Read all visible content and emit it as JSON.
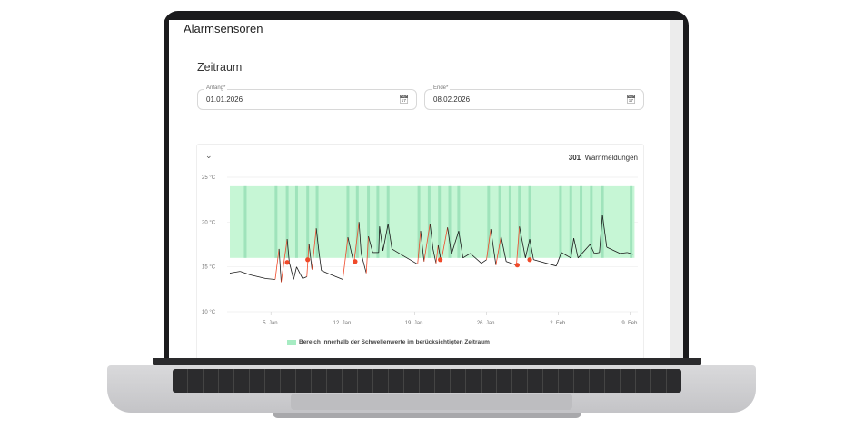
{
  "app": {
    "title": "Alarmsensoren"
  },
  "section": {
    "title": "Zeitraum"
  },
  "start_field": {
    "label": "Anfang*",
    "value": "01.01.2026",
    "icon": "calendar-icon"
  },
  "end_field": {
    "label": "Ende*",
    "value": "08.02.2026",
    "icon": "calendar-icon"
  },
  "panel": {
    "collapse_icon": "chevron-down-icon",
    "warning_count": "301",
    "warning_label": "Warnmeldungen"
  },
  "colors": {
    "band": "#c6f6d5",
    "band_stripe": "#9fe3bb",
    "line": "#1a1a1a",
    "alarm": "#f04a2a",
    "legend": "#a7ecc3"
  },
  "chart_data": {
    "type": "line",
    "y_unit": "°C",
    "ylim": [
      10,
      25
    ],
    "y_ticks": [
      "10 °C",
      "15 °C",
      "20 °C",
      "25 °C"
    ],
    "x_ticks": [
      "5. Jan.",
      "12. Jan.",
      "19. Jan.",
      "26. Jan.",
      "2. Feb.",
      "9. Feb."
    ],
    "x_tick_dates": [
      "2026-01-05",
      "2026-01-12",
      "2026-01-19",
      "2026-01-26",
      "2026-02-02",
      "2026-02-09"
    ],
    "x_range": [
      "2026-01-01",
      "2026-02-09 10:00"
    ],
    "threshold_band": {
      "min": 16,
      "max": 24,
      "label": "Bereich innerhalb der Schwellenwerte im berücksichtigten Zeitraum"
    },
    "warning_periods": [
      "2026-01-02 12:00",
      "2026-01-05 12:00",
      "2026-01-06 14:00",
      "2026-01-07 12:00",
      "2026-01-08 14:00",
      "2026-01-09 12:00",
      "2026-01-12 12:00",
      "2026-01-13 10:00",
      "2026-01-14 12:00",
      "2026-01-15 10:00",
      "2026-01-16 10:00",
      "2026-01-19 10:00",
      "2026-01-20 10:00",
      "2026-01-21 10:00",
      "2026-01-22 10:00",
      "2026-01-23 07:00",
      "2026-01-26 05:00",
      "2026-01-27 07:00",
      "2026-01-28 07:00",
      "2026-01-29 05:00",
      "2026-01-30 05:00",
      "2026-02-02 05:00",
      "2026-02-03 05:00",
      "2026-02-04 05:00",
      "2026-02-05 05:00",
      "2026-02-06 07:00",
      "2026-02-09 02:00"
    ],
    "series": [
      {
        "points": [
          [
            "2026-01-01 00:00",
            14.3
          ],
          [
            "2026-01-02 00:00",
            14.5
          ],
          [
            "2026-01-03 00:00",
            14.1
          ],
          [
            "2026-01-04 12:00",
            13.7
          ],
          [
            "2026-01-05 10:00",
            13.6
          ],
          [
            "2026-01-05 19:00",
            17.0
          ],
          [
            "2026-01-06 00:00",
            13.3
          ],
          [
            "2026-01-06 14:00",
            18.1
          ],
          [
            "2026-01-06 19:00",
            15.5
          ],
          [
            "2026-01-07 05:00",
            13.6
          ],
          [
            "2026-01-07 12:00",
            15.0
          ],
          [
            "2026-01-08 02:00",
            13.7
          ],
          [
            "2026-01-08 12:00",
            13.9
          ],
          [
            "2026-01-08 17:00",
            17.6
          ],
          [
            "2026-01-09 00:00",
            14.7
          ],
          [
            "2026-01-09 10:00",
            19.3
          ],
          [
            "2026-01-09 17:00",
            16.4
          ],
          [
            "2026-01-09 22:00",
            14.6
          ],
          [
            "2026-01-10 12:00",
            14.3
          ],
          [
            "2026-01-12 00:00",
            13.6
          ],
          [
            "2026-01-12 12:00",
            18.3
          ],
          [
            "2026-01-13 02:00",
            15.4
          ],
          [
            "2026-01-13 14:00",
            20.0
          ],
          [
            "2026-01-13 19:00",
            16.5
          ],
          [
            "2026-01-14 07:00",
            14.3
          ],
          [
            "2026-01-14 12:00",
            18.4
          ],
          [
            "2026-01-14 22:00",
            16.6
          ],
          [
            "2026-01-15 12:00",
            16.6
          ],
          [
            "2026-01-15 14:00",
            19.5
          ],
          [
            "2026-01-15 22:00",
            16.8
          ],
          [
            "2026-01-16 10:00",
            19.8
          ],
          [
            "2026-01-16 19:00",
            17.0
          ],
          [
            "2026-01-17 19:00",
            16.3
          ],
          [
            "2026-01-19 07:00",
            15.3
          ],
          [
            "2026-01-19 14:00",
            19.0
          ],
          [
            "2026-01-19 22:00",
            15.6
          ],
          [
            "2026-01-20 12:00",
            19.8
          ],
          [
            "2026-01-20 19:00",
            17.0
          ],
          [
            "2026-01-21 02:00",
            15.4
          ],
          [
            "2026-01-21 07:00",
            17.4
          ],
          [
            "2026-01-21 14:00",
            15.6
          ],
          [
            "2026-01-22 05:00",
            19.4
          ],
          [
            "2026-01-22 14:00",
            16.4
          ],
          [
            "2026-01-23 07:00",
            19.0
          ],
          [
            "2026-01-23 17:00",
            16.0
          ],
          [
            "2026-01-24 10:00",
            16.5
          ],
          [
            "2026-01-25 12:00",
            15.4
          ],
          [
            "2026-01-26 00:00",
            15.8
          ],
          [
            "2026-01-26 10:00",
            19.2
          ],
          [
            "2026-01-26 22:00",
            15.2
          ],
          [
            "2026-01-27 10:00",
            18.4
          ],
          [
            "2026-01-27 22:00",
            15.6
          ],
          [
            "2026-01-28 22:00",
            15.2
          ],
          [
            "2026-01-29 05:00",
            19.5
          ],
          [
            "2026-01-29 19:00",
            16.0
          ],
          [
            "2026-01-30 05:00",
            18.1
          ],
          [
            "2026-01-30 14:00",
            15.8
          ],
          [
            "2026-02-01 19:00",
            15.1
          ],
          [
            "2026-02-02 07:00",
            16.6
          ],
          [
            "2026-02-03 05:00",
            16.0
          ],
          [
            "2026-02-03 12:00",
            18.2
          ],
          [
            "2026-02-03 22:00",
            16.0
          ],
          [
            "2026-02-05 02:00",
            17.5
          ],
          [
            "2026-02-05 12:00",
            16.5
          ],
          [
            "2026-02-06 00:00",
            16.6
          ],
          [
            "2026-02-06 07:00",
            20.8
          ],
          [
            "2026-02-06 17:00",
            17.2
          ],
          [
            "2026-02-08 00:00",
            16.5
          ],
          [
            "2026-02-08 17:00",
            16.6
          ],
          [
            "2026-02-09 07:00",
            16.4
          ]
        ]
      }
    ],
    "alarm_points": [
      [
        "2026-01-06 14:00",
        15.5
      ],
      [
        "2026-01-08 14:00",
        15.8
      ],
      [
        "2026-01-13 05:00",
        15.6
      ],
      [
        "2026-01-21 12:00",
        15.8
      ],
      [
        "2026-01-29 00:00",
        15.2
      ],
      [
        "2026-01-30 05:00",
        15.8
      ]
    ],
    "legend": "bottom"
  }
}
